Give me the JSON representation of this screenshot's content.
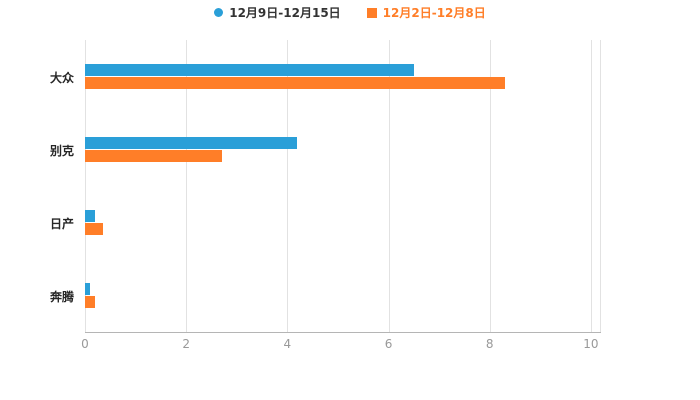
{
  "legend": {
    "item_text_colors": [
      "#333333",
      "#ff7e28"
    ]
  },
  "chart_data": {
    "type": "bar",
    "orientation": "horizontal",
    "title": "",
    "xlabel": "",
    "ylabel": "",
    "categories": [
      "大众",
      "别克",
      "日产",
      "奔腾"
    ],
    "series": [
      {
        "name": "12月9日-12月15日",
        "color": "#2a9fd8",
        "values": [
          6.5,
          4.2,
          0.2,
          0.1
        ]
      },
      {
        "name": "12月2日-12月8日",
        "color": "#ff7e28",
        "values": [
          8.3,
          2.7,
          0.35,
          0.2
        ]
      }
    ],
    "x_ticks": [
      0,
      2,
      4,
      6,
      8,
      10
    ],
    "xlim": [
      0,
      10.2
    ],
    "grid": true,
    "legend_position": "top"
  }
}
